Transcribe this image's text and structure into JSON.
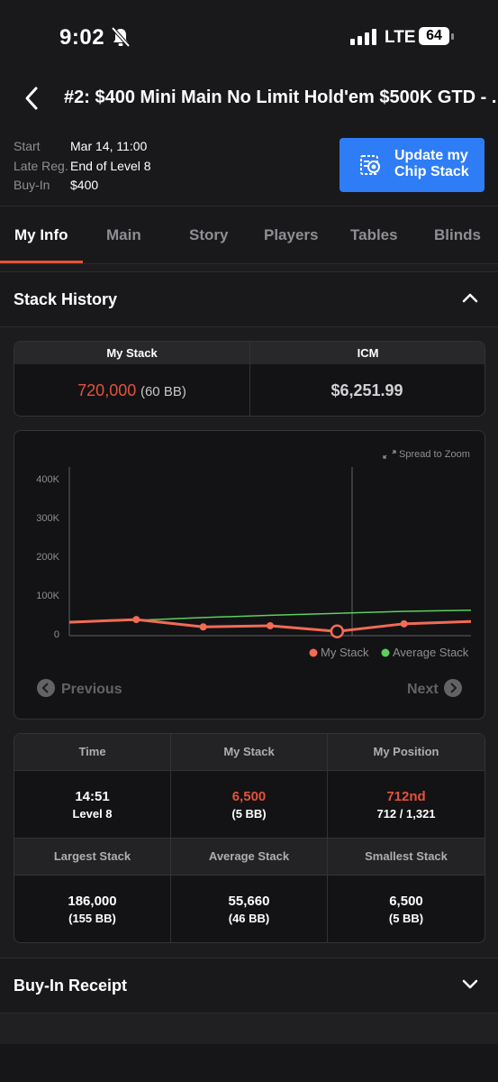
{
  "status": {
    "time": "9:02",
    "network": "LTE",
    "battery": "64"
  },
  "nav": {
    "title": "#2: $400 Mini Main No Limit Hold'em $500K GTD - ..."
  },
  "info": {
    "start_label": "Start",
    "start_value": "Mar 14, 11:00",
    "late_label": "Late Reg.",
    "late_value": "End of Level 8",
    "buyin_label": "Buy-In",
    "buyin_value": "$400",
    "update_button": "Update my Chip Stack"
  },
  "tabs": [
    "My Info",
    "Main",
    "Story",
    "Players",
    "Tables",
    "Blinds"
  ],
  "stack_history": {
    "title": "Stack History",
    "my_stack_label": "My Stack",
    "my_stack_value": "720,000",
    "my_stack_bb": "(60 BB)",
    "icm_label": "ICM",
    "icm_value": "$6,251.99"
  },
  "chart": {
    "zoom_hint": "Spread to Zoom",
    "previous": "Previous",
    "next": "Next",
    "colors": {
      "my_stack": "#f26b55",
      "average_stack": "#5ccf5c"
    }
  },
  "chart_data": {
    "type": "line",
    "ylim": [
      0,
      430000
    ],
    "yticks": [
      "0",
      "100K",
      "200K",
      "300K",
      "400K"
    ],
    "grid": false,
    "legend": "bottom-right",
    "series": [
      {
        "name": "My Stack",
        "values": [
          30000,
          37000,
          18000,
          21000,
          6500,
          26000,
          32000
        ]
      },
      {
        "name": "Average Stack",
        "values": [
          32000,
          35000,
          42000,
          48000,
          53000,
          58000,
          61000
        ]
      }
    ]
  },
  "stats": {
    "headers_top": [
      "Time",
      "My Stack",
      "My Position"
    ],
    "time_value": "14:51",
    "time_sub": "Level 8",
    "stack_value": "6,500",
    "stack_sub": "(5 BB)",
    "position_value": "712nd",
    "position_sub": "712 / 1,321",
    "headers_bottom": [
      "Largest Stack",
      "Average Stack",
      "Smallest Stack"
    ],
    "largest_value": "186,000",
    "largest_sub": "(155 BB)",
    "average_value": "55,660",
    "average_sub": "(46 BB)",
    "smallest_value": "6,500",
    "smallest_sub": "(5 BB)"
  },
  "buyin_receipt": {
    "title": "Buy-In Receipt"
  }
}
